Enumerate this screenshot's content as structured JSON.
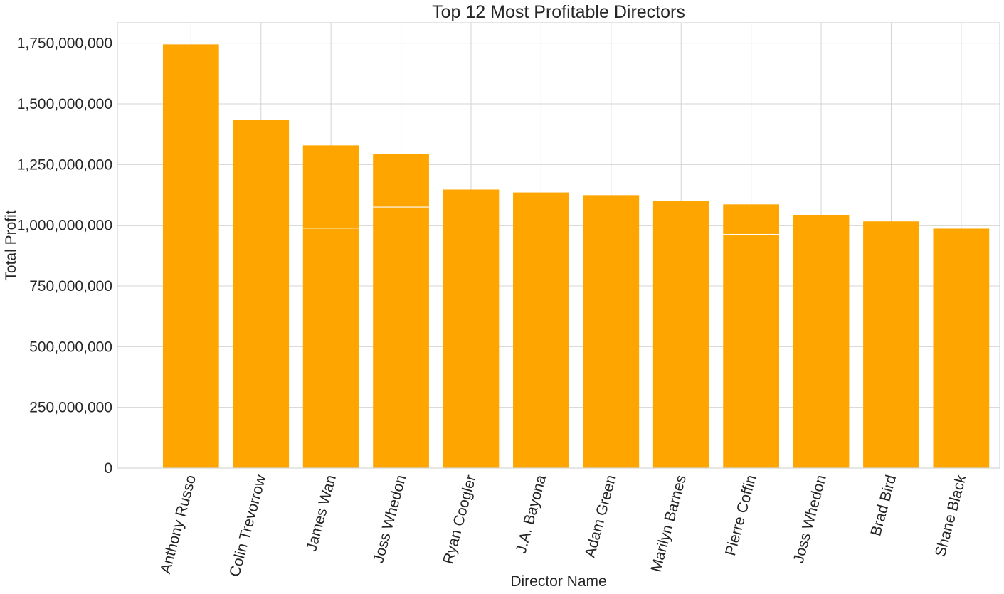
{
  "chart_data": {
    "type": "bar",
    "title": "Top 12 Most Profitable Directors",
    "xlabel": "Director Name",
    "ylabel": "Total Profit",
    "categories": [
      "Anthony Russo",
      "Colin Trevorrow",
      "James Wan",
      "Joss Whedon",
      "Ryan Coogler",
      "J.A. Bayona",
      "Adam Green",
      "Marilyn Barnes",
      "Pierre Coffin",
      "Joss Whedon",
      "Brad Bird",
      "Shane Black"
    ],
    "values": [
      1745000000,
      1433000000,
      1329000000,
      1293000000,
      1147000000,
      1135000000,
      1124000000,
      1100000000,
      1086000000,
      1043000000,
      1016000000,
      986000000
    ],
    "overlay_lines": [
      {
        "category_index": 2,
        "value": 988000000
      },
      {
        "category_index": 3,
        "value": 1075000000
      },
      {
        "category_index": 8,
        "value": 962000000
      }
    ],
    "yticks": [
      0,
      250000000,
      500000000,
      750000000,
      1000000000,
      1250000000,
      1500000000,
      1750000000
    ],
    "ytick_labels": [
      "0",
      "250,000,000",
      "500,000,000",
      "750,000,000",
      "1,000,000,000",
      "1,250,000,000",
      "1,500,000,000",
      "1,750,000,000"
    ],
    "ylim": [
      0,
      1834000000
    ],
    "grid": true,
    "bar_color": "#ffa500",
    "grid_color": "#d4d4d4",
    "tick_rotation_deg": -75
  }
}
